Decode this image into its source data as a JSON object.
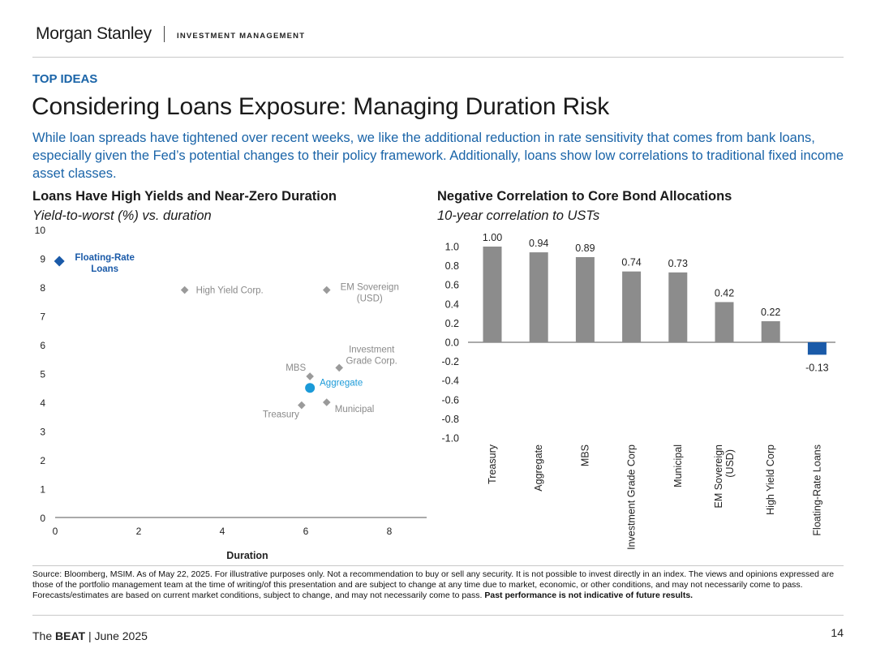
{
  "header": {
    "brand": "Morgan Stanley",
    "division": "INVESTMENT MANAGEMENT"
  },
  "kicker": "TOP IDEAS",
  "title": "Considering Loans Exposure: Managing Duration Risk",
  "intro": "While loan spreads have tightened over recent weeks, we like the additional reduction in rate sensitivity that comes from bank loans, especially given the Fed’s potential changes to their policy framework. Additionally, loans show low correlations to traditional fixed income asset classes.",
  "colors": {
    "blue": "#1a64a8",
    "gray_marker": "#9a9a9a",
    "bar_gray": "#8c8c8c",
    "highlight": "#1a5aa8",
    "aggregate": "#1b9ad8"
  },
  "chart_data": [
    {
      "type": "scatter",
      "title": "Loans Have High Yields and Near-Zero Duration",
      "subtitle": "Yield-to-worst (%) vs. duration",
      "xlabel": "Duration",
      "ylabel": "",
      "xlim": [
        0,
        9
      ],
      "ylim": [
        0,
        10
      ],
      "xticks": [
        "0",
        "2",
        "4",
        "6",
        "8"
      ],
      "yticks": [
        "0",
        "1",
        "2",
        "3",
        "4",
        "5",
        "6",
        "7",
        "8",
        "9",
        "10"
      ],
      "grid": false,
      "points": [
        {
          "label": "Floating-Rate Loans",
          "x": 0.1,
          "y": 8.9,
          "style": "highlight"
        },
        {
          "label": "High Yield Corp.",
          "x": 3.1,
          "y": 7.9,
          "style": "gray"
        },
        {
          "label": "EM Sovereign (USD)",
          "x": 6.5,
          "y": 7.9,
          "style": "gray"
        },
        {
          "label": "Investment Grade Corp.",
          "x": 6.8,
          "y": 5.2,
          "style": "gray"
        },
        {
          "label": "MBS",
          "x": 6.1,
          "y": 4.9,
          "style": "gray"
        },
        {
          "label": "Aggregate",
          "x": 6.1,
          "y": 4.5,
          "style": "aggregate"
        },
        {
          "label": "Treasury",
          "x": 5.9,
          "y": 3.9,
          "style": "gray"
        },
        {
          "label": "Municipal",
          "x": 6.5,
          "y": 4.0,
          "style": "gray"
        }
      ]
    },
    {
      "type": "bar",
      "title": "Negative Correlation to Core Bond Allocations",
      "subtitle": "10-year correlation to USTs",
      "ylim": [
        -1.0,
        1.0
      ],
      "yticks": [
        "1.0",
        "0.8",
        "0.6",
        "0.4",
        "0.2",
        "0.0",
        "-0.2",
        "-0.4",
        "-0.6",
        "-0.8",
        "-1.0"
      ],
      "categories": [
        "Treasury",
        "Aggregate",
        "MBS",
        "Investment Grade Corp",
        "Municipal",
        "EM Sovereign (USD)",
        "High Yield Corp",
        "Floating-Rate Loans"
      ],
      "values": [
        1.0,
        0.94,
        0.89,
        0.74,
        0.73,
        0.42,
        0.22,
        -0.13
      ],
      "data_labels": [
        "1.00",
        "0.94",
        "0.89",
        "0.74",
        "0.73",
        "0.42",
        "0.22",
        "-0.13"
      ],
      "highlight": "Floating-Rate Loans"
    }
  ],
  "source_text": "Source: Bloomberg, MSIM. As of May 22, 2025. For illustrative purposes only. Not a recommendation to buy or sell any security. It is not possible to invest directly in an index. The views and opinions expressed are those of the portfolio management team at the time of writing/of this presentation and are subject to change at any time due to market, economic, or other conditions, and may not necessarily come to pass.  Forecasts/estimates are based on current market conditions, subject to change, and may not necessarily come to pass. ",
  "source_bold": "Past performance is not indicative of future results.",
  "footer": {
    "prefix": "The ",
    "bold": "BEAT",
    "suffix": " | June 2025"
  },
  "page_number": "14"
}
